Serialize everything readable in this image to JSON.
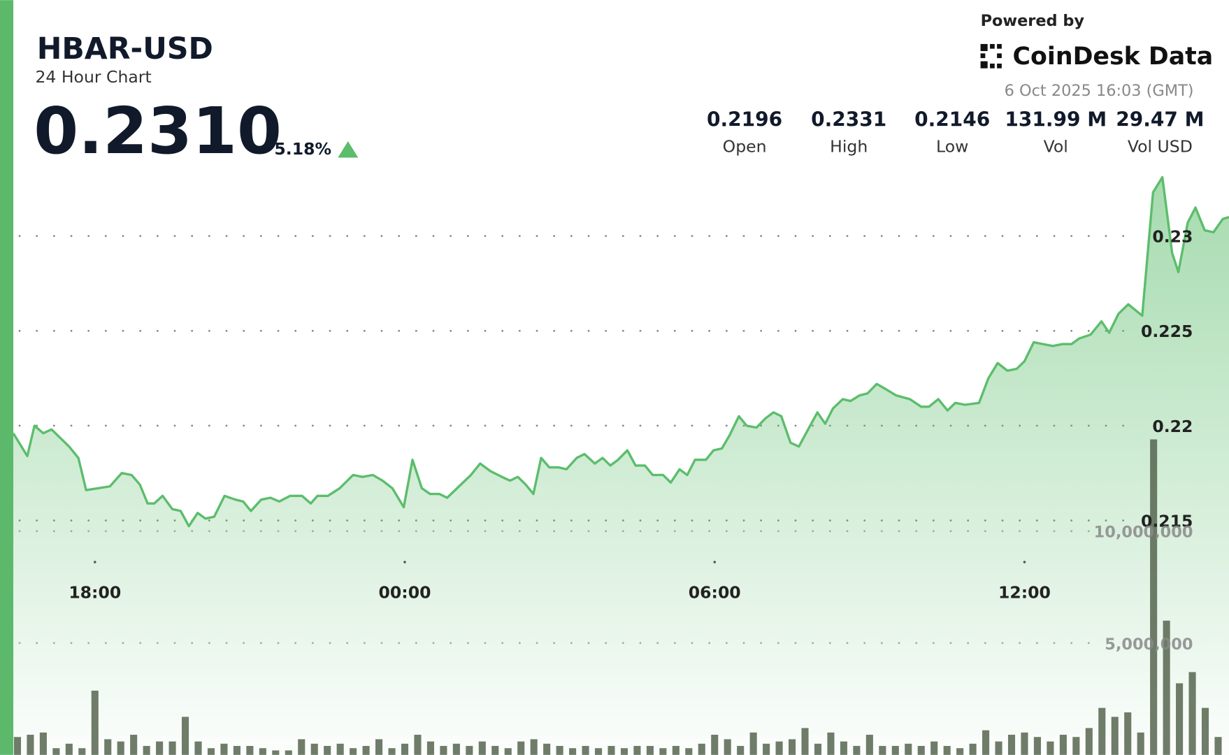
{
  "header": {
    "title": "HBAR-USD",
    "subtitle": "24 Hour Chart",
    "price": "0.2310",
    "change": "5.18%",
    "powered_by": "Powered by",
    "brand": "CoinDesk Data",
    "timestamp": "6 Oct 2025 16:03 (GMT)"
  },
  "stats": [
    {
      "value": "0.2196",
      "label": "Open"
    },
    {
      "value": "0.2331",
      "label": "High"
    },
    {
      "value": "0.2146",
      "label": "Low"
    },
    {
      "value": "131.99 M",
      "label": "Vol"
    },
    {
      "value": "29.47 M",
      "label": "Vol USD"
    }
  ],
  "chart_data": {
    "type": "line",
    "xlim": [
      -1.58,
      21.96
    ],
    "xticks": [
      {
        "value": 0,
        "label": "18:00"
      },
      {
        "value": 6,
        "label": "00:00"
      },
      {
        "value": 12,
        "label": "06:00"
      },
      {
        "value": 18,
        "label": "12:00"
      }
    ],
    "ylim": [
      0.20264,
      0.233554
    ],
    "yticks": [
      0.215,
      0.22,
      0.225,
      0.23
    ],
    "y2lim": [
      0,
      26200000
    ],
    "y2ticks": [
      {
        "value": 5000000,
        "label": "5,000,000"
      },
      {
        "value": 10000000,
        "label": "10,000,000"
      }
    ],
    "grid": true,
    "series": [
      {
        "type": "area",
        "color": "#5cbd6c",
        "x": [
          -1.58,
          -1.31,
          -1.17,
          -1.0,
          -0.84,
          -0.5,
          -0.32,
          -0.17,
          0.29,
          0.52,
          0.71,
          0.87,
          1.02,
          1.15,
          1.31,
          1.5,
          1.66,
          1.82,
          1.99,
          2.14,
          2.31,
          2.51,
          2.72,
          2.87,
          3.02,
          3.22,
          3.4,
          3.57,
          3.78,
          4.01,
          4.18,
          4.31,
          4.51,
          4.74,
          5.0,
          5.18,
          5.38,
          5.57,
          5.76,
          5.98,
          6.15,
          6.33,
          6.49,
          6.67,
          6.82,
          7.05,
          7.28,
          7.46,
          7.66,
          7.88,
          8.04,
          8.19,
          8.34,
          8.49,
          8.64,
          8.8,
          8.98,
          9.13,
          9.33,
          9.48,
          9.68,
          9.83,
          9.98,
          10.13,
          10.31,
          10.47,
          10.65,
          10.8,
          11.0,
          11.15,
          11.32,
          11.47,
          11.62,
          11.83,
          11.98,
          12.14,
          12.29,
          12.47,
          12.62,
          12.81,
          12.99,
          13.14,
          13.29,
          13.47,
          13.63,
          13.81,
          13.99,
          14.14,
          14.29,
          14.48,
          14.63,
          14.81,
          14.96,
          15.14,
          15.33,
          15.51,
          15.78,
          16.0,
          16.15,
          16.33,
          16.51,
          16.66,
          16.85,
          17.12,
          17.3,
          17.48,
          17.67,
          17.85,
          18.0,
          18.18,
          18.36,
          18.55,
          18.73,
          18.91,
          19.06,
          19.28,
          19.49,
          19.64,
          19.82,
          20.01,
          20.28,
          20.49,
          20.67,
          20.86,
          20.98,
          21.16,
          21.31,
          21.49,
          21.66,
          21.84,
          21.96
        ],
        "values": [
          0.2196,
          0.2184,
          0.22,
          0.2196,
          0.2198,
          0.2189,
          0.2183,
          0.2166,
          0.2168,
          0.2175,
          0.2174,
          0.2169,
          0.2159,
          0.2159,
          0.2163,
          0.2156,
          0.2155,
          0.2147,
          0.2154,
          0.2151,
          0.2152,
          0.2163,
          0.2161,
          0.216,
          0.2155,
          0.2161,
          0.2162,
          0.216,
          0.2163,
          0.2163,
          0.2159,
          0.2163,
          0.2163,
          0.2167,
          0.2174,
          0.2173,
          0.2174,
          0.2171,
          0.2167,
          0.2157,
          0.2182,
          0.2167,
          0.2164,
          0.2164,
          0.2162,
          0.2168,
          0.2174,
          0.218,
          0.2176,
          0.2173,
          0.2171,
          0.2173,
          0.2169,
          0.2164,
          0.2183,
          0.2178,
          0.2178,
          0.2177,
          0.2183,
          0.2185,
          0.218,
          0.2183,
          0.2179,
          0.2182,
          0.2187,
          0.2179,
          0.2179,
          0.2174,
          0.2174,
          0.217,
          0.2177,
          0.2174,
          0.2182,
          0.2182,
          0.2187,
          0.2188,
          0.2195,
          0.2205,
          0.22,
          0.2199,
          0.2204,
          0.2207,
          0.2205,
          0.2191,
          0.2189,
          0.2198,
          0.2207,
          0.2201,
          0.2209,
          0.2214,
          0.2213,
          0.2216,
          0.2217,
          0.2222,
          0.2219,
          0.2216,
          0.2214,
          0.221,
          0.221,
          0.2214,
          0.2208,
          0.2212,
          0.2211,
          0.2212,
          0.2225,
          0.2233,
          0.2229,
          0.223,
          0.2234,
          0.2244,
          0.2243,
          0.2242,
          0.2243,
          0.2243,
          0.2246,
          0.2248,
          0.2255,
          0.2249,
          0.2259,
          0.2264,
          0.2258,
          0.2323,
          0.2331,
          0.2291,
          0.2281,
          0.2307,
          0.2315,
          0.2303,
          0.2302,
          0.2309,
          0.231
        ]
      },
      {
        "type": "bar",
        "axis": "y2",
        "color": "#56654f",
        "x": [
          -1.5,
          -1.25,
          -1,
          -0.75,
          -0.5,
          -0.25,
          0,
          0.25,
          0.5,
          0.75,
          1,
          1.25,
          1.5,
          1.75,
          2,
          2.25,
          2.5,
          2.75,
          3,
          3.25,
          3.5,
          3.75,
          4,
          4.25,
          4.5,
          4.75,
          5,
          5.25,
          5.5,
          5.75,
          6,
          6.25,
          6.5,
          6.75,
          7,
          7.25,
          7.5,
          7.75,
          8,
          8.25,
          8.5,
          8.75,
          9,
          9.25,
          9.5,
          9.75,
          10,
          10.25,
          10.5,
          10.75,
          11,
          11.25,
          11.5,
          11.75,
          12,
          12.25,
          12.5,
          12.75,
          13,
          13.25,
          13.5,
          13.75,
          14,
          14.25,
          14.5,
          14.75,
          15,
          15.25,
          15.5,
          15.75,
          16,
          16.25,
          16.5,
          16.75,
          17,
          17.25,
          17.5,
          17.75,
          18,
          18.25,
          18.5,
          18.75,
          19,
          19.25,
          19.5,
          19.75,
          20,
          20.25,
          20.5,
          20.75,
          21,
          21.25,
          21.5,
          21.75
        ],
        "values": [
          800000,
          900000,
          1000000,
          300000,
          500000,
          300000,
          2870000,
          700000,
          600000,
          900000,
          400000,
          600000,
          600000,
          1700000,
          600000,
          300000,
          500000,
          400000,
          400000,
          300000,
          200000,
          200000,
          700000,
          500000,
          400000,
          500000,
          300000,
          400000,
          700000,
          300000,
          500000,
          900000,
          600000,
          400000,
          500000,
          400000,
          600000,
          400000,
          300000,
          600000,
          700000,
          500000,
          400000,
          300000,
          400000,
          300000,
          400000,
          300000,
          400000,
          400000,
          300000,
          400000,
          300000,
          500000,
          900000,
          700000,
          400000,
          1000000,
          500000,
          600000,
          700000,
          1200000,
          500000,
          1000000,
          600000,
          400000,
          900000,
          400000,
          400000,
          500000,
          400000,
          600000,
          400000,
          300000,
          500000,
          1100000,
          600000,
          900000,
          1000000,
          800000,
          600000,
          900000,
          800000,
          1200000,
          2100000,
          1700000,
          1900000,
          1000000,
          14100000,
          6000000,
          3200000,
          3700000,
          2100000,
          800000
        ]
      }
    ]
  }
}
